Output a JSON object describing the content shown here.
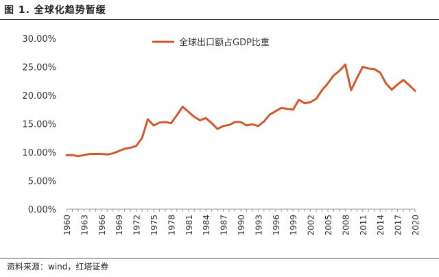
{
  "figure": {
    "title": "图 1. 全球化趋势暂缓",
    "source_label": "资料来源：",
    "source_text": "wind，红塔证券"
  },
  "colors": {
    "series": "#d2582a",
    "axis": "#999999",
    "text": "#333333"
  },
  "chart_data": {
    "type": "line",
    "title": "",
    "xlabel": "",
    "ylabel": "",
    "ylim": [
      0,
      30
    ],
    "ytick_labels": [
      "0.00%",
      "5.00%",
      "10.00%",
      "15.00%",
      "20.00%",
      "25.00%",
      "30.00%"
    ],
    "xtick_labels": [
      "1960",
      "1963",
      "1966",
      "1969",
      "1972",
      "1975",
      "1978",
      "1981",
      "1984",
      "1987",
      "1990",
      "1993",
      "1996",
      "1999",
      "2002",
      "2005",
      "2008",
      "2011",
      "2014",
      "2017",
      "2020"
    ],
    "legend": "top-center",
    "series": [
      {
        "name": "全球出口额占GDP比重",
        "x": [
          1960,
          1961,
          1962,
          1963,
          1964,
          1965,
          1966,
          1967,
          1968,
          1969,
          1970,
          1971,
          1972,
          1973,
          1974,
          1975,
          1976,
          1977,
          1978,
          1979,
          1980,
          1981,
          1982,
          1983,
          1984,
          1985,
          1986,
          1987,
          1988,
          1989,
          1990,
          1991,
          1992,
          1993,
          1994,
          1995,
          1996,
          1997,
          1998,
          1999,
          2000,
          2001,
          2002,
          2003,
          2004,
          2005,
          2006,
          2007,
          2008,
          2009,
          2010,
          2011,
          2012,
          2013,
          2014,
          2015,
          2016,
          2017,
          2018,
          2019,
          2020
        ],
        "values": [
          9.5,
          9.5,
          9.3,
          9.5,
          9.7,
          9.7,
          9.7,
          9.6,
          9.8,
          10.2,
          10.6,
          10.8,
          11.1,
          12.5,
          15.8,
          14.7,
          15.2,
          15.3,
          15.1,
          16.5,
          18.0,
          17.1,
          16.2,
          15.6,
          16.0,
          15.1,
          14.1,
          14.6,
          14.8,
          15.3,
          15.3,
          14.7,
          14.9,
          14.6,
          15.4,
          16.6,
          17.2,
          17.8,
          17.6,
          17.5,
          19.2,
          18.6,
          18.8,
          19.4,
          20.9,
          22.1,
          23.5,
          24.3,
          25.4,
          20.9,
          23.0,
          25.0,
          24.7,
          24.6,
          24.0,
          22.1,
          21.0,
          21.9,
          22.7,
          21.8,
          20.8
        ]
      }
    ]
  }
}
